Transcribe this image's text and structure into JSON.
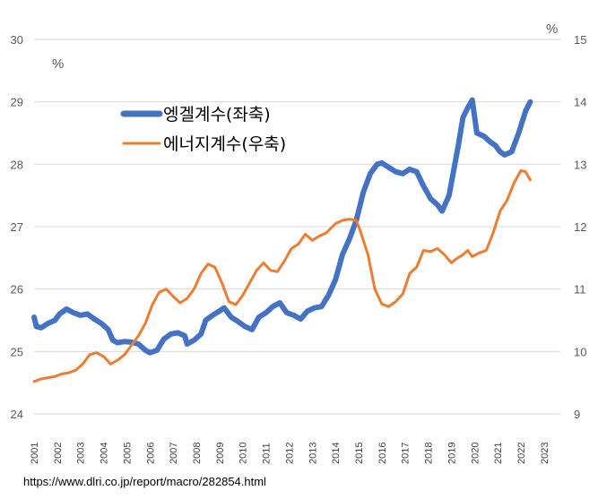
{
  "chart_data": {
    "type": "line",
    "left_unit": "%",
    "right_unit": "%",
    "y_left": {
      "min": 24,
      "max": 30,
      "ticks": [
        24,
        25,
        26,
        27,
        28,
        29,
        30
      ]
    },
    "y_right": {
      "min": 9,
      "max": 15,
      "ticks": [
        9,
        10,
        11,
        12,
        13,
        14,
        15
      ]
    },
    "x": {
      "min": 2001,
      "max": 2023.7,
      "ticks": [
        "2001",
        "2002",
        "2003",
        "2004",
        "2005",
        "2006",
        "2007",
        "2008",
        "2009",
        "2010",
        "2011",
        "2012",
        "2013",
        "2014",
        "2015",
        "2016",
        "2017",
        "2018",
        "2019",
        "2020",
        "2021",
        "2022",
        "2023"
      ]
    },
    "grid": "horizontal",
    "legend_position": "top-left",
    "source": "https://www.dlri.co.jp/report/macro/282854.html",
    "series": [
      {
        "name": "엥겔계수(좌축)",
        "axis": "left",
        "color": "#4472C4",
        "points": [
          [
            2001.0,
            25.55
          ],
          [
            2001.1,
            25.4
          ],
          [
            2001.3,
            25.38
          ],
          [
            2001.6,
            25.45
          ],
          [
            2001.9,
            25.5
          ],
          [
            2002.1,
            25.6
          ],
          [
            2002.4,
            25.68
          ],
          [
            2002.7,
            25.62
          ],
          [
            2003.0,
            25.58
          ],
          [
            2003.3,
            25.6
          ],
          [
            2003.6,
            25.52
          ],
          [
            2003.9,
            25.45
          ],
          [
            2004.2,
            25.35
          ],
          [
            2004.4,
            25.18
          ],
          [
            2004.6,
            25.14
          ],
          [
            2004.9,
            25.16
          ],
          [
            2005.2,
            25.15
          ],
          [
            2005.5,
            25.12
          ],
          [
            2005.8,
            25.02
          ],
          [
            2006.0,
            24.98
          ],
          [
            2006.3,
            25.02
          ],
          [
            2006.6,
            25.2
          ],
          [
            2006.9,
            25.28
          ],
          [
            2007.2,
            25.3
          ],
          [
            2007.5,
            25.25
          ],
          [
            2007.6,
            25.12
          ],
          [
            2007.9,
            25.18
          ],
          [
            2008.2,
            25.28
          ],
          [
            2008.4,
            25.5
          ],
          [
            2008.7,
            25.58
          ],
          [
            2009.0,
            25.65
          ],
          [
            2009.2,
            25.7
          ],
          [
            2009.5,
            25.55
          ],
          [
            2009.8,
            25.48
          ],
          [
            2010.1,
            25.4
          ],
          [
            2010.4,
            25.35
          ],
          [
            2010.7,
            25.55
          ],
          [
            2011.0,
            25.62
          ],
          [
            2011.3,
            25.72
          ],
          [
            2011.6,
            25.78
          ],
          [
            2011.9,
            25.62
          ],
          [
            2012.2,
            25.58
          ],
          [
            2012.5,
            25.52
          ],
          [
            2012.8,
            25.65
          ],
          [
            2013.1,
            25.7
          ],
          [
            2013.4,
            25.72
          ],
          [
            2013.7,
            25.9
          ],
          [
            2014.0,
            26.15
          ],
          [
            2014.3,
            26.55
          ],
          [
            2014.6,
            26.8
          ],
          [
            2014.9,
            27.1
          ],
          [
            2015.2,
            27.55
          ],
          [
            2015.5,
            27.85
          ],
          [
            2015.8,
            28.0
          ],
          [
            2016.0,
            28.02
          ],
          [
            2016.3,
            27.95
          ],
          [
            2016.6,
            27.88
          ],
          [
            2016.9,
            27.85
          ],
          [
            2017.2,
            27.92
          ],
          [
            2017.5,
            27.88
          ],
          [
            2017.8,
            27.65
          ],
          [
            2018.1,
            27.45
          ],
          [
            2018.4,
            27.35
          ],
          [
            2018.6,
            27.25
          ],
          [
            2018.9,
            27.5
          ],
          [
            2019.1,
            27.9
          ],
          [
            2019.3,
            28.3
          ],
          [
            2019.5,
            28.75
          ],
          [
            2019.7,
            28.9
          ],
          [
            2019.9,
            29.03
          ],
          [
            2020.1,
            28.5
          ],
          [
            2020.4,
            28.45
          ],
          [
            2020.7,
            28.35
          ],
          [
            2020.9,
            28.3
          ],
          [
            2021.1,
            28.2
          ],
          [
            2021.3,
            28.15
          ],
          [
            2021.6,
            28.2
          ],
          [
            2021.9,
            28.5
          ],
          [
            2022.2,
            28.85
          ],
          [
            2022.4,
            29.0
          ]
        ]
      },
      {
        "name": "에너지계수(우축)",
        "axis": "right",
        "color": "#ED7D31",
        "points": [
          [
            2001.0,
            9.52
          ],
          [
            2001.3,
            9.56
          ],
          [
            2001.6,
            9.58
          ],
          [
            2001.9,
            9.6
          ],
          [
            2002.2,
            9.64
          ],
          [
            2002.5,
            9.66
          ],
          [
            2002.8,
            9.7
          ],
          [
            2003.1,
            9.8
          ],
          [
            2003.4,
            9.95
          ],
          [
            2003.7,
            9.98
          ],
          [
            2004.0,
            9.92
          ],
          [
            2004.3,
            9.8
          ],
          [
            2004.6,
            9.86
          ],
          [
            2004.9,
            9.95
          ],
          [
            2005.2,
            10.1
          ],
          [
            2005.5,
            10.25
          ],
          [
            2005.8,
            10.45
          ],
          [
            2006.1,
            10.75
          ],
          [
            2006.4,
            10.95
          ],
          [
            2006.7,
            11.0
          ],
          [
            2007.0,
            10.88
          ],
          [
            2007.3,
            10.78
          ],
          [
            2007.6,
            10.85
          ],
          [
            2007.9,
            11.0
          ],
          [
            2008.2,
            11.25
          ],
          [
            2008.5,
            11.4
          ],
          [
            2008.8,
            11.35
          ],
          [
            2009.1,
            11.1
          ],
          [
            2009.4,
            10.8
          ],
          [
            2009.7,
            10.75
          ],
          [
            2010.0,
            10.9
          ],
          [
            2010.3,
            11.1
          ],
          [
            2010.6,
            11.3
          ],
          [
            2010.9,
            11.42
          ],
          [
            2011.2,
            11.3
          ],
          [
            2011.5,
            11.28
          ],
          [
            2011.8,
            11.45
          ],
          [
            2012.1,
            11.65
          ],
          [
            2012.4,
            11.72
          ],
          [
            2012.7,
            11.88
          ],
          [
            2013.0,
            11.78
          ],
          [
            2013.3,
            11.85
          ],
          [
            2013.6,
            11.9
          ],
          [
            2014.0,
            12.05
          ],
          [
            2014.3,
            12.1
          ],
          [
            2014.6,
            12.12
          ],
          [
            2014.9,
            12.1
          ],
          [
            2015.1,
            11.9
          ],
          [
            2015.4,
            11.55
          ],
          [
            2015.7,
            11.0
          ],
          [
            2016.0,
            10.76
          ],
          [
            2016.3,
            10.72
          ],
          [
            2016.6,
            10.8
          ],
          [
            2016.9,
            10.92
          ],
          [
            2017.2,
            11.25
          ],
          [
            2017.5,
            11.35
          ],
          [
            2017.8,
            11.62
          ],
          [
            2018.1,
            11.6
          ],
          [
            2018.4,
            11.65
          ],
          [
            2018.7,
            11.55
          ],
          [
            2019.0,
            11.42
          ],
          [
            2019.2,
            11.48
          ],
          [
            2019.5,
            11.55
          ],
          [
            2019.7,
            11.62
          ],
          [
            2019.9,
            11.52
          ],
          [
            2020.2,
            11.58
          ],
          [
            2020.5,
            11.62
          ],
          [
            2020.8,
            11.9
          ],
          [
            2021.1,
            12.25
          ],
          [
            2021.4,
            12.42
          ],
          [
            2021.7,
            12.7
          ],
          [
            2022.0,
            12.9
          ],
          [
            2022.2,
            12.88
          ],
          [
            2022.4,
            12.75
          ]
        ]
      }
    ]
  }
}
